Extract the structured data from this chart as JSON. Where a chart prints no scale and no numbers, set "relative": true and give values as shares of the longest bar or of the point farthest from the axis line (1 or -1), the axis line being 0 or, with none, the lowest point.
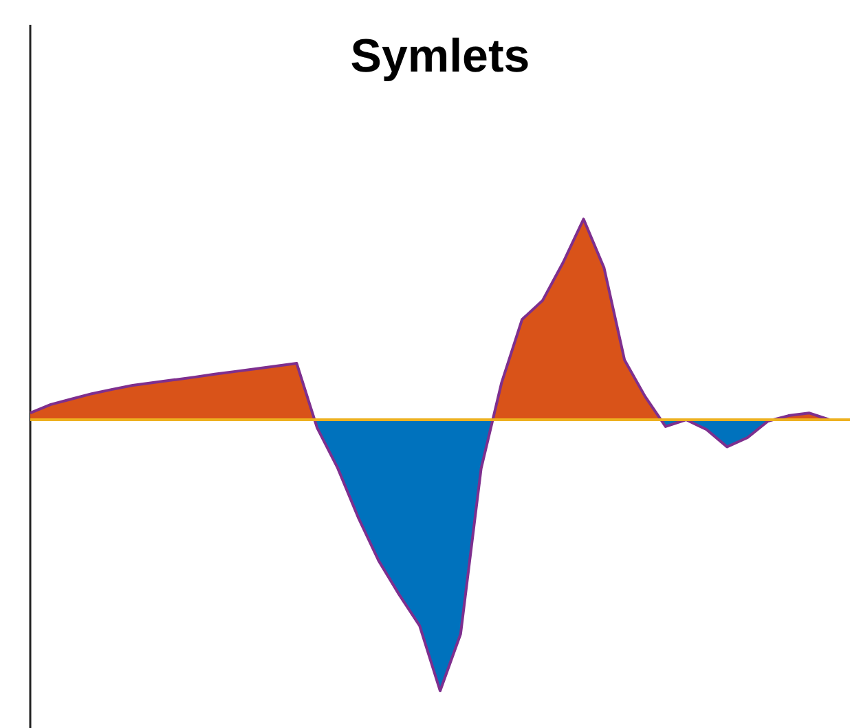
{
  "chart_data": {
    "type": "area",
    "title": "Symlets",
    "relative": true,
    "categories": [
      null,
      null,
      null,
      null,
      null,
      null,
      null,
      null,
      null,
      null,
      null,
      null,
      null,
      null,
      null,
      null,
      null,
      null,
      null,
      null,
      null,
      null,
      null,
      null,
      null,
      null,
      null,
      null,
      null,
      null,
      null,
      null,
      null,
      null,
      null,
      null,
      null,
      null,
      null,
      null,
      null
    ],
    "series": [
      {
        "color": "#d95319",
        "values": [
          0.025,
          0.056,
          0.076,
          0.096,
          0.112,
          0.127,
          0.137,
          0.147,
          0.157,
          0.168,
          0.178,
          0.188,
          0.198,
          0.208,
          -0.03,
          -0.178,
          -0.36,
          -0.52,
          -0.645,
          -0.76,
          -1,
          -0.79,
          -0.18,
          0.137,
          0.37,
          0.44,
          0.58,
          0.74,
          0.56,
          0.22,
          0.086,
          -0.025,
          0,
          -0.036,
          -0.1,
          -0.066,
          -0.005,
          0.015,
          0.025,
          0,
          0
        ]
      }
    ],
    "colors": [
      "#0072bd"
    ],
    "ref_lines": [
      {
        "axis": "y",
        "value": 0,
        "color": "#edb120"
      }
    ]
  }
}
